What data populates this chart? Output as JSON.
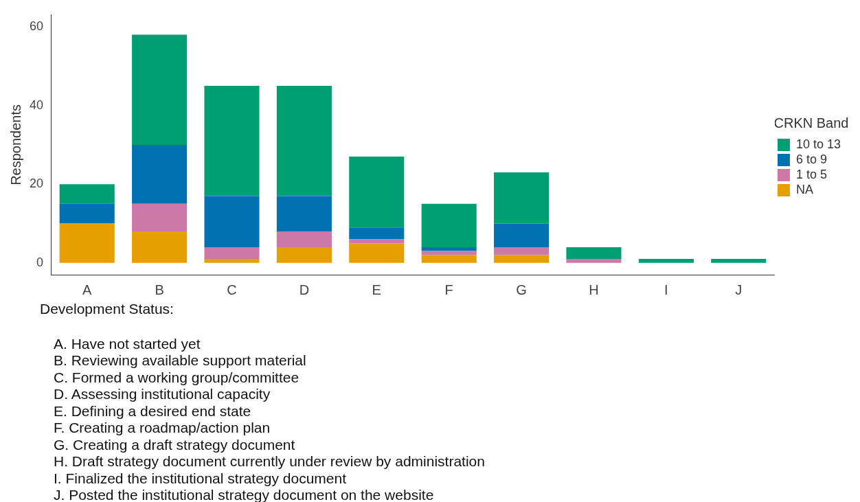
{
  "chart_data": {
    "type": "bar",
    "stacked": true,
    "ylabel": "Respondents",
    "legend_title": "CRKN Band",
    "legend": "right",
    "grid": false,
    "categories": [
      "A",
      "B",
      "C",
      "D",
      "E",
      "F",
      "G",
      "H",
      "I",
      "J"
    ],
    "ylim": [
      -3,
      63
    ],
    "yticks": [
      0,
      20,
      40,
      60
    ],
    "series": [
      {
        "name": "NA",
        "color": "#e69f00",
        "values": [
          10,
          8,
          1,
          4,
          5,
          2,
          2,
          0,
          0,
          0
        ]
      },
      {
        "name": "1 to 5",
        "color": "#cc79a7",
        "values": [
          0,
          7,
          3,
          4,
          1,
          1,
          2,
          1,
          0,
          0
        ]
      },
      {
        "name": "6 to 9",
        "color": "#0072b2",
        "values": [
          5,
          15,
          13,
          9,
          3,
          1,
          6,
          0,
          0,
          0
        ]
      },
      {
        "name": "10 to 13",
        "color": "#009e73",
        "values": [
          5,
          28,
          28,
          28,
          18,
          11,
          13,
          3,
          1,
          1
        ]
      }
    ],
    "annotations": [
      "Development Status:",
      "A. Have not started yet",
      "B. Reviewing available support material",
      "C. Formed a working group/committee",
      "D. Assessing institutional capacity",
      "E. Defining a desired end state",
      "F. Creating a roadmap/action plan",
      "G. Creating a draft strategy document",
      "H. Draft strategy document currently under review by administration",
      "I. Finalized the institutional strategy document",
      "J. Posted the institutional strategy document on the website"
    ]
  }
}
